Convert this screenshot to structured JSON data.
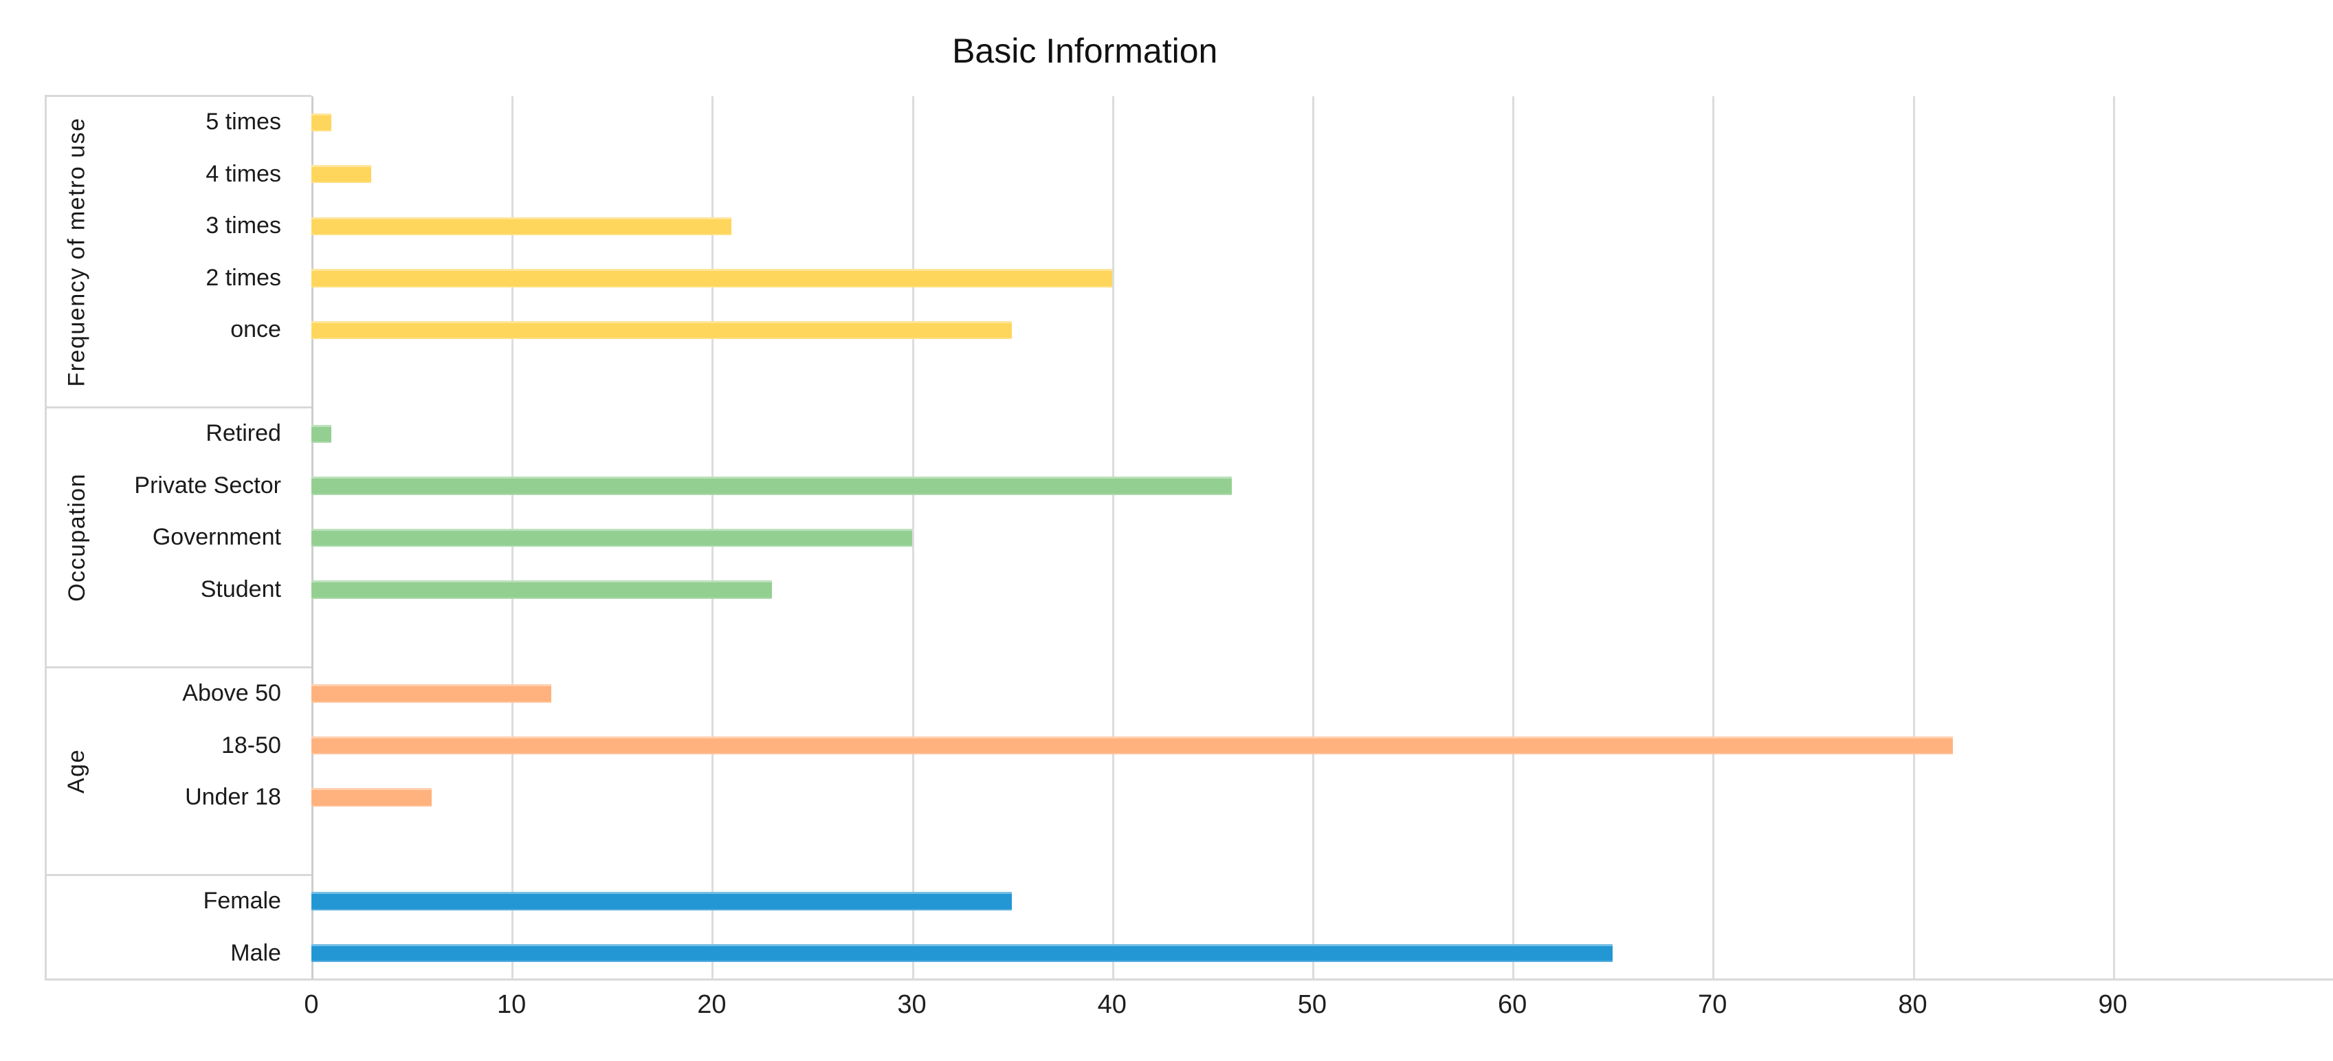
{
  "title": "Basic Information",
  "colors": {
    "background": "#FFFFFF",
    "gridline": "#DCDCDC",
    "axis_line": "#CDCDCD",
    "strip_border": "#D9D9D9",
    "text": "#1A1A1A",
    "series_frequency": "#FFD65C",
    "series_occupation": "#94CF92",
    "series_age": "#FFB27E",
    "series_gender": "#2397D4"
  },
  "chart_data": {
    "type": "bar",
    "orientation": "horizontal",
    "title": "Basic Information",
    "xlabel": "",
    "ylabel": "",
    "xlim": [
      0,
      101
    ],
    "x_ticks": [
      0,
      10,
      20,
      30,
      40,
      50,
      60,
      70,
      80,
      90
    ],
    "grid": "vertical-gridlines-on",
    "legend": "none",
    "groups": [
      {
        "label": "Frequency of metro use",
        "color": "#FFD65C",
        "bars": [
          {
            "label": "5 times",
            "value": 1
          },
          {
            "label": "4 times",
            "value": 3
          },
          {
            "label": "3 times",
            "value": 21
          },
          {
            "label": "2 times",
            "value": 40
          },
          {
            "label": "once",
            "value": 35
          }
        ],
        "spacer_after": true
      },
      {
        "label": "Occupation",
        "color": "#94CF92",
        "bars": [
          {
            "label": "Retired",
            "value": 1
          },
          {
            "label": "Private Sector",
            "value": 46
          },
          {
            "label": "Government",
            "value": 30
          },
          {
            "label": "Student",
            "value": 23
          }
        ],
        "spacer_after": true
      },
      {
        "label": "Age",
        "color": "#FFB27E",
        "bars": [
          {
            "label": "Above 50",
            "value": 12
          },
          {
            "label": "18-50",
            "value": 82
          },
          {
            "label": "Under 18",
            "value": 6
          }
        ],
        "spacer_after": true
      },
      {
        "label": "",
        "color": "#2397D4",
        "bars": [
          {
            "label": "Female",
            "value": 35
          },
          {
            "label": "Male",
            "value": 65
          }
        ],
        "spacer_after": false
      }
    ]
  }
}
